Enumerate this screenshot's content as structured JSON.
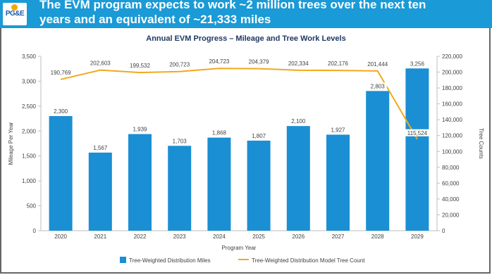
{
  "header": {
    "logo_text": "PG&E",
    "title": "The EVM program expects to work ~2 million trees over the next ten\nyears and an equivalent of ~21,333 miles"
  },
  "colors": {
    "header_bg": "#1a9ad6",
    "bar": "#1a8fd3",
    "line": "#f2a81d",
    "title": "#1f3864"
  },
  "chart_data": {
    "type": "bar",
    "title": "Annual EVM Progress – Mileage and Tree Work Levels",
    "xlabel": "Program Year",
    "ylabel": "Mileage Per Year",
    "y2label": "Tree Counts",
    "categories": [
      "2020",
      "2021",
      "2022",
      "2023",
      "2024",
      "2025",
      "2026",
      "2027",
      "2028",
      "2029"
    ],
    "ylim": [
      0,
      3500
    ],
    "yticks": [
      "0",
      "500",
      "1,000",
      "1,500",
      "2,000",
      "2,500",
      "3,000",
      "3,500"
    ],
    "y2lim": [
      0,
      220000
    ],
    "y2ticks": [
      "0",
      "20,000",
      "40,000",
      "60,000",
      "80,000",
      "100,000",
      "120,000",
      "140,000",
      "160,000",
      "180,000",
      "200,000",
      "220,000"
    ],
    "grid": false,
    "legend_placement": "bottom",
    "series": [
      {
        "name": "Tree-Weighted Distribution Miles",
        "type": "bar",
        "axis": "left",
        "values": [
          2300,
          1567,
          1939,
          1703,
          1868,
          1807,
          2100,
          1927,
          2803,
          3256
        ],
        "labels": [
          "2,300",
          "1,567",
          "1,939",
          "1,703",
          "1,868",
          "1,807",
          "2,100",
          "1,927",
          "2,803",
          "3,256"
        ]
      },
      {
        "name": "Tree-Weighted Distribution Model Tree Count",
        "type": "line",
        "axis": "right",
        "values": [
          190769,
          202603,
          199532,
          200723,
          204723,
          204379,
          202334,
          202176,
          201444,
          115524
        ],
        "labels": [
          "190,769",
          "202,603",
          "199,532",
          "200,723",
          "204,723",
          "204,379",
          "202,334",
          "202,176",
          "201,444",
          "115,524"
        ]
      }
    ]
  }
}
